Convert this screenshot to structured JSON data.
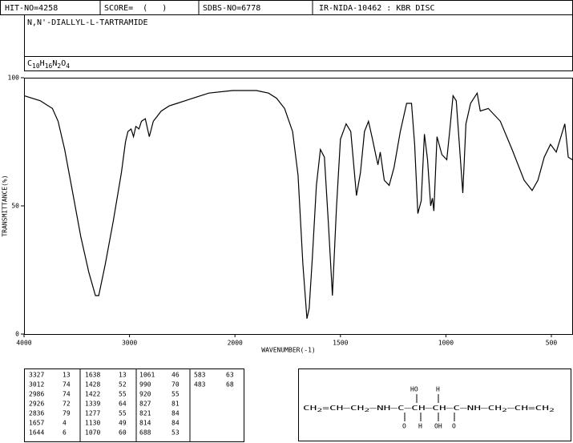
{
  "header": {
    "hit": "HIT-NO=4258",
    "score": "SCORE=  (   )",
    "sdbs": "SDBS-NO=6778",
    "method": "IR-NIDA-10462 : KBR DISC"
  },
  "name": "N,N'-DIALLYL-L-TARTRAMIDE",
  "formula": "C10H16N2O4",
  "chart_data": {
    "type": "line",
    "x_label": "WAVENUMBER(-1)",
    "y_label": "TRANSMITTANCE(%)",
    "xlim": [
      4000,
      400
    ],
    "xticks": [
      4000,
      3000,
      2000,
      1500,
      1000,
      500
    ],
    "ylim": [
      0,
      100
    ],
    "yticks": [
      0,
      50,
      100
    ],
    "series": [
      {
        "color": "#000000",
        "x": [
          4000,
          3846,
          3731,
          3677,
          3615,
          3538,
          3462,
          3385,
          3323,
          3292,
          3231,
          3154,
          3077,
          3038,
          3015,
          2985,
          2962,
          2940,
          2910,
          2887,
          2850,
          2812,
          2774,
          2699,
          2624,
          2549,
          2398,
          2248,
          2023,
          1898,
          1841,
          1803,
          1765,
          1727,
          1701,
          1678,
          1659,
          1648,
          1633,
          1614,
          1595,
          1576,
          1557,
          1538,
          1519,
          1500,
          1473,
          1451,
          1424,
          1405,
          1386,
          1367,
          1348,
          1330,
          1322,
          1311,
          1292,
          1269,
          1246,
          1216,
          1186,
          1163,
          1148,
          1133,
          1117,
          1102,
          1087,
          1072,
          1064,
          1057,
          1042,
          1019,
          996,
          981,
          966,
          951,
          936,
          920,
          905,
          883,
          852,
          837,
          799,
          742,
          686,
          629,
          591,
          564,
          534,
          504,
          477,
          447,
          436,
          420,
          401
        ],
        "values": [
          93,
          91,
          88,
          83,
          72,
          55,
          38,
          24,
          15,
          15,
          27,
          44,
          63,
          75,
          79,
          80,
          77,
          81,
          80,
          83,
          84,
          77,
          83,
          87,
          89,
          90,
          92,
          94,
          95,
          95,
          94,
          92,
          88,
          79,
          62,
          27,
          6,
          10,
          30,
          58,
          72,
          69,
          43,
          15,
          49,
          76,
          82,
          79,
          54,
          63,
          79,
          83,
          76,
          69,
          66,
          71,
          60,
          58,
          65,
          79,
          90,
          90,
          74,
          47,
          52,
          78,
          68,
          50,
          53,
          48,
          77,
          70,
          68,
          80,
          93,
          91,
          74,
          55,
          82,
          90,
          94,
          87,
          88,
          83,
          72,
          60,
          56,
          60,
          69,
          74,
          71,
          79,
          82,
          69,
          68
        ]
      }
    ]
  },
  "peaks": [
    [
      [
        "3327",
        "13"
      ],
      [
        "3012",
        "74"
      ],
      [
        "2986",
        "74"
      ],
      [
        "2926",
        "72"
      ],
      [
        "2836",
        "79"
      ],
      [
        "1657",
        "4"
      ],
      [
        "1644",
        "6"
      ]
    ],
    [
      [
        "1638",
        "13"
      ],
      [
        "1428",
        "52"
      ],
      [
        "1422",
        "55"
      ],
      [
        "1339",
        "64"
      ],
      [
        "1277",
        "55"
      ],
      [
        "1130",
        "49"
      ],
      [
        "1070",
        "60"
      ]
    ],
    [
      [
        "1061",
        "46"
      ],
      [
        "990",
        "70"
      ],
      [
        "920",
        "55"
      ],
      [
        "827",
        "81"
      ],
      [
        "821",
        "84"
      ],
      [
        "814",
        "84"
      ],
      [
        "688",
        "53"
      ]
    ],
    [
      [
        "583",
        "63"
      ],
      [
        "483",
        "68"
      ]
    ]
  ],
  "structure": {
    "chain": "CH2=CH—CH2—NH—C—CH—CH—C—NH—CH2—CH=CH2",
    "top": [
      "HO",
      "H"
    ],
    "bottom": [
      "O",
      "H",
      "OH",
      "O"
    ]
  }
}
